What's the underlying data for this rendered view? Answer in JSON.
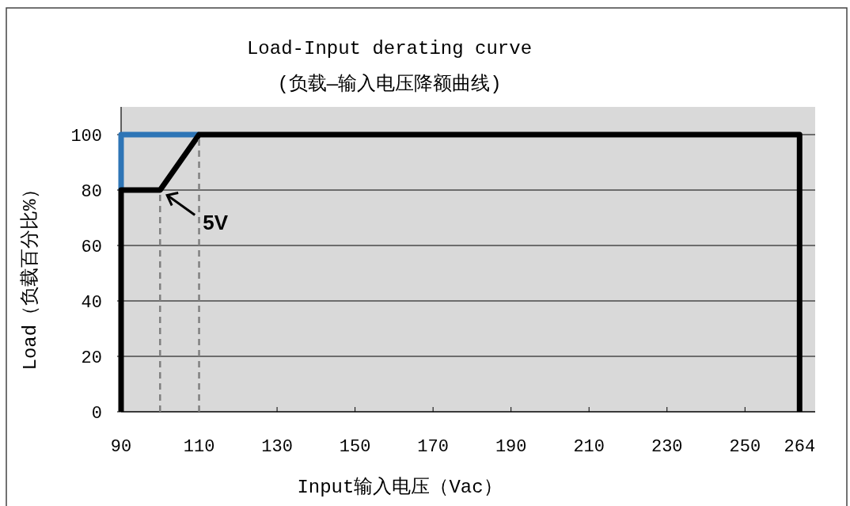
{
  "chart_data": {
    "type": "line",
    "title": "Load-Input derating curve",
    "subtitle": "(负载—输入电压降额曲线)",
    "xlabel": "Input输入电压（Vac）",
    "ylabel": "Load（负载百分比%）",
    "series": [
      {
        "color": "#2e75b6",
        "x": [
          90,
          90,
          110
        ],
        "values": [
          80,
          100,
          100
        ]
      },
      {
        "color": "#000000",
        "x": [
          90,
          90,
          100,
          110,
          264,
          264
        ],
        "values": [
          0,
          80,
          80,
          100,
          100,
          0
        ]
      },
      {
        "color": "#808080",
        "line_style": "dashed",
        "x": [
          100,
          100
        ],
        "values": [
          0,
          80
        ]
      },
      {
        "color": "#808080",
        "line_style": "dashed",
        "x": [
          110,
          110
        ],
        "values": [
          0,
          100
        ]
      }
    ],
    "annotations": [
      {
        "text": "5V",
        "x": 101,
        "y": 79
      }
    ],
    "xlim": [
      90,
      268
    ],
    "xticks": [
      90,
      110,
      130,
      150,
      170,
      190,
      210,
      230,
      250,
      264
    ],
    "ylim": [
      0,
      110
    ],
    "yticks": [
      0,
      20,
      40,
      60,
      80,
      100
    ],
    "grid": "y"
  }
}
